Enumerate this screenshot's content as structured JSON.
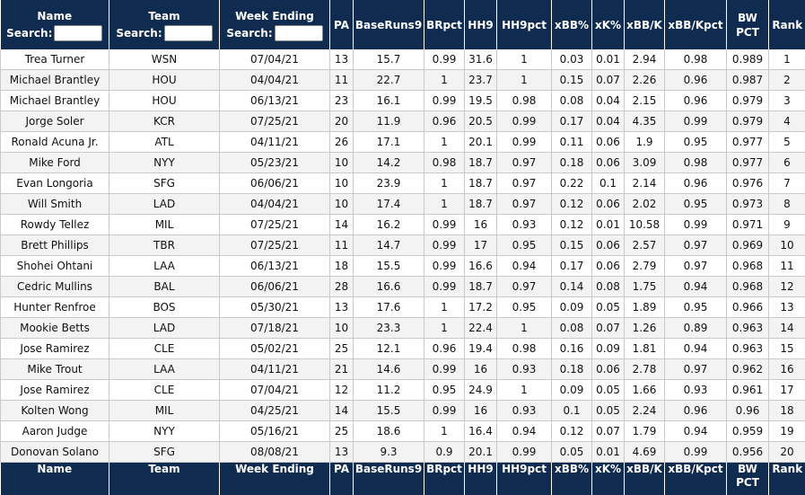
{
  "columns": {
    "name": "Name",
    "team": "Team",
    "week": "Week Ending",
    "pa": "PA",
    "baseruns9": "BaseRuns9",
    "brpct": "BRpct",
    "hh9": "HH9",
    "hh9pct": "HH9pct",
    "xbb": "xBB%",
    "xk": "xK%",
    "xbbk": "xBB/K",
    "xbbkpct": "xBB/Kpct",
    "bwpct_line1": "BW",
    "bwpct_line2": "PCT",
    "rank": "Rank"
  },
  "search_label": "Search:",
  "rows": [
    {
      "name": "Trea Turner",
      "team": "WSN",
      "week": "07/04/21",
      "pa": "13",
      "br9": "15.7",
      "brpct": "0.99",
      "hh9": "31.6",
      "hh9pct": "1",
      "xbb": "0.03",
      "xk": "0.01",
      "xbbk": "2.94",
      "xbbkpct": "0.98",
      "bw": "0.989",
      "rank": "1"
    },
    {
      "name": "Michael Brantley",
      "team": "HOU",
      "week": "04/04/21",
      "pa": "11",
      "br9": "22.7",
      "brpct": "1",
      "hh9": "23.7",
      "hh9pct": "1",
      "xbb": "0.15",
      "xk": "0.07",
      "xbbk": "2.26",
      "xbbkpct": "0.96",
      "bw": "0.987",
      "rank": "2"
    },
    {
      "name": "Michael Brantley",
      "team": "HOU",
      "week": "06/13/21",
      "pa": "23",
      "br9": "16.1",
      "brpct": "0.99",
      "hh9": "19.5",
      "hh9pct": "0.98",
      "xbb": "0.08",
      "xk": "0.04",
      "xbbk": "2.15",
      "xbbkpct": "0.96",
      "bw": "0.979",
      "rank": "3"
    },
    {
      "name": "Jorge Soler",
      "team": "KCR",
      "week": "07/25/21",
      "pa": "20",
      "br9": "11.9",
      "brpct": "0.96",
      "hh9": "20.5",
      "hh9pct": "0.99",
      "xbb": "0.17",
      "xk": "0.04",
      "xbbk": "4.35",
      "xbbkpct": "0.99",
      "bw": "0.979",
      "rank": "4"
    },
    {
      "name": "Ronald Acuna Jr.",
      "team": "ATL",
      "week": "04/11/21",
      "pa": "26",
      "br9": "17.1",
      "brpct": "1",
      "hh9": "20.1",
      "hh9pct": "0.99",
      "xbb": "0.11",
      "xk": "0.06",
      "xbbk": "1.9",
      "xbbkpct": "0.95",
      "bw": "0.977",
      "rank": "5"
    },
    {
      "name": "Mike Ford",
      "team": "NYY",
      "week": "05/23/21",
      "pa": "10",
      "br9": "14.2",
      "brpct": "0.98",
      "hh9": "18.7",
      "hh9pct": "0.97",
      "xbb": "0.18",
      "xk": "0.06",
      "xbbk": "3.09",
      "xbbkpct": "0.98",
      "bw": "0.977",
      "rank": "6"
    },
    {
      "name": "Evan Longoria",
      "team": "SFG",
      "week": "06/06/21",
      "pa": "10",
      "br9": "23.9",
      "brpct": "1",
      "hh9": "18.7",
      "hh9pct": "0.97",
      "xbb": "0.22",
      "xk": "0.1",
      "xbbk": "2.14",
      "xbbkpct": "0.96",
      "bw": "0.976",
      "rank": "7"
    },
    {
      "name": "Will Smith",
      "team": "LAD",
      "week": "04/04/21",
      "pa": "10",
      "br9": "17.4",
      "brpct": "1",
      "hh9": "18.7",
      "hh9pct": "0.97",
      "xbb": "0.12",
      "xk": "0.06",
      "xbbk": "2.02",
      "xbbkpct": "0.95",
      "bw": "0.973",
      "rank": "8"
    },
    {
      "name": "Rowdy Tellez",
      "team": "MIL",
      "week": "07/25/21",
      "pa": "14",
      "br9": "16.2",
      "brpct": "0.99",
      "hh9": "16",
      "hh9pct": "0.93",
      "xbb": "0.12",
      "xk": "0.01",
      "xbbk": "10.58",
      "xbbkpct": "0.99",
      "bw": "0.971",
      "rank": "9"
    },
    {
      "name": "Brett Phillips",
      "team": "TBR",
      "week": "07/25/21",
      "pa": "11",
      "br9": "14.7",
      "brpct": "0.99",
      "hh9": "17",
      "hh9pct": "0.95",
      "xbb": "0.15",
      "xk": "0.06",
      "xbbk": "2.57",
      "xbbkpct": "0.97",
      "bw": "0.969",
      "rank": "10"
    },
    {
      "name": "Shohei Ohtani",
      "team": "LAA",
      "week": "06/13/21",
      "pa": "18",
      "br9": "15.5",
      "brpct": "0.99",
      "hh9": "16.6",
      "hh9pct": "0.94",
      "xbb": "0.17",
      "xk": "0.06",
      "xbbk": "2.79",
      "xbbkpct": "0.97",
      "bw": "0.968",
      "rank": "11"
    },
    {
      "name": "Cedric Mullins",
      "team": "BAL",
      "week": "06/06/21",
      "pa": "28",
      "br9": "16.6",
      "brpct": "0.99",
      "hh9": "18.7",
      "hh9pct": "0.97",
      "xbb": "0.14",
      "xk": "0.08",
      "xbbk": "1.75",
      "xbbkpct": "0.94",
      "bw": "0.968",
      "rank": "12"
    },
    {
      "name": "Hunter Renfroe",
      "team": "BOS",
      "week": "05/30/21",
      "pa": "13",
      "br9": "17.6",
      "brpct": "1",
      "hh9": "17.2",
      "hh9pct": "0.95",
      "xbb": "0.09",
      "xk": "0.05",
      "xbbk": "1.89",
      "xbbkpct": "0.95",
      "bw": "0.966",
      "rank": "13"
    },
    {
      "name": "Mookie Betts",
      "team": "LAD",
      "week": "07/18/21",
      "pa": "10",
      "br9": "23.3",
      "brpct": "1",
      "hh9": "22.4",
      "hh9pct": "1",
      "xbb": "0.08",
      "xk": "0.07",
      "xbbk": "1.26",
      "xbbkpct": "0.89",
      "bw": "0.963",
      "rank": "14"
    },
    {
      "name": "Jose Ramirez",
      "team": "CLE",
      "week": "05/02/21",
      "pa": "25",
      "br9": "12.1",
      "brpct": "0.96",
      "hh9": "19.4",
      "hh9pct": "0.98",
      "xbb": "0.16",
      "xk": "0.09",
      "xbbk": "1.81",
      "xbbkpct": "0.94",
      "bw": "0.963",
      "rank": "15"
    },
    {
      "name": "Mike Trout",
      "team": "LAA",
      "week": "04/11/21",
      "pa": "21",
      "br9": "14.6",
      "brpct": "0.99",
      "hh9": "16",
      "hh9pct": "0.93",
      "xbb": "0.18",
      "xk": "0.06",
      "xbbk": "2.78",
      "xbbkpct": "0.97",
      "bw": "0.962",
      "rank": "16"
    },
    {
      "name": "Jose Ramirez",
      "team": "CLE",
      "week": "07/04/21",
      "pa": "12",
      "br9": "11.2",
      "brpct": "0.95",
      "hh9": "24.9",
      "hh9pct": "1",
      "xbb": "0.09",
      "xk": "0.05",
      "xbbk": "1.66",
      "xbbkpct": "0.93",
      "bw": "0.961",
      "rank": "17"
    },
    {
      "name": "Kolten Wong",
      "team": "MIL",
      "week": "04/25/21",
      "pa": "14",
      "br9": "15.5",
      "brpct": "0.99",
      "hh9": "16",
      "hh9pct": "0.93",
      "xbb": "0.1",
      "xk": "0.05",
      "xbbk": "2.24",
      "xbbkpct": "0.96",
      "bw": "0.96",
      "rank": "18"
    },
    {
      "name": "Aaron Judge",
      "team": "NYY",
      "week": "05/16/21",
      "pa": "25",
      "br9": "18.6",
      "brpct": "1",
      "hh9": "16.4",
      "hh9pct": "0.94",
      "xbb": "0.12",
      "xk": "0.07",
      "xbbk": "1.79",
      "xbbkpct": "0.94",
      "bw": "0.959",
      "rank": "19"
    },
    {
      "name": "Donovan Solano",
      "team": "SFG",
      "week": "08/08/21",
      "pa": "13",
      "br9": "9.3",
      "brpct": "0.9",
      "hh9": "20.1",
      "hh9pct": "0.99",
      "xbb": "0.05",
      "xk": "0.01",
      "xbbk": "4.69",
      "xbbkpct": "0.99",
      "bw": "0.956",
      "rank": "20"
    }
  ]
}
